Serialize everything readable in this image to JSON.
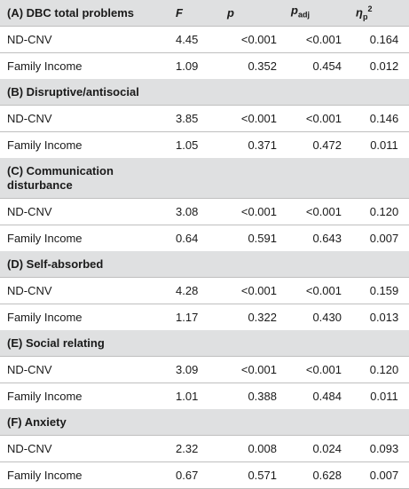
{
  "headers": {
    "F": "F",
    "p": "p",
    "padj_main": "p",
    "padj_sub": "adj",
    "eta_main": "η",
    "eta_sub": "p",
    "eta_sup": "2"
  },
  "sections": [
    {
      "title": "(A) DBC total problems",
      "rows": [
        {
          "label": "ND-CNV",
          "F": "4.45",
          "p": "<0.001",
          "padj": "<0.001",
          "eta": "0.164"
        },
        {
          "label": "Family Income",
          "F": "1.09",
          "p": "0.352",
          "padj": "0.454",
          "eta": "0.012"
        }
      ]
    },
    {
      "title": "(B) Disruptive/antisocial",
      "rows": [
        {
          "label": "ND-CNV",
          "F": "3.85",
          "p": "<0.001",
          "padj": "<0.001",
          "eta": "0.146"
        },
        {
          "label": "Family Income",
          "F": "1.05",
          "p": "0.371",
          "padj": "0.472",
          "eta": "0.011"
        }
      ]
    },
    {
      "title": "(C) Communication disturbance",
      "rows": [
        {
          "label": "ND-CNV",
          "F": "3.08",
          "p": "<0.001",
          "padj": "<0.001",
          "eta": "0.120"
        },
        {
          "label": "Family Income",
          "F": "0.64",
          "p": "0.591",
          "padj": "0.643",
          "eta": "0.007"
        }
      ]
    },
    {
      "title": "(D) Self-absorbed",
      "rows": [
        {
          "label": "ND-CNV",
          "F": "4.28",
          "p": "<0.001",
          "padj": "<0.001",
          "eta": "0.159"
        },
        {
          "label": "Family Income",
          "F": "1.17",
          "p": "0.322",
          "padj": "0.430",
          "eta": "0.013"
        }
      ]
    },
    {
      "title": "(E) Social relating",
      "rows": [
        {
          "label": "ND-CNV",
          "F": "3.09",
          "p": "<0.001",
          "padj": "<0.001",
          "eta": "0.120"
        },
        {
          "label": "Family Income",
          "F": "1.01",
          "p": "0.388",
          "padj": "0.484",
          "eta": "0.011"
        }
      ]
    },
    {
      "title": "(F) Anxiety",
      "rows": [
        {
          "label": "ND-CNV",
          "F": "2.32",
          "p": "0.008",
          "padj": "0.024",
          "eta": "0.093"
        },
        {
          "label": "Family Income",
          "F": "0.67",
          "p": "0.571",
          "padj": "0.628",
          "eta": "0.007"
        }
      ]
    }
  ]
}
